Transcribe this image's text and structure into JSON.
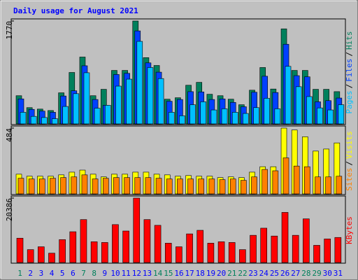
{
  "chart_data": [
    {
      "type": "bar",
      "title": "Daily usage for August 2021",
      "ylim": [
        0,
        1770
      ],
      "yticks": [
        1770
      ],
      "legend_separator": "/",
      "series": [
        {
          "name": "Hits",
          "color": "#00805c",
          "values": [
            485,
            280,
            255,
            230,
            535,
            885,
            1150,
            485,
            595,
            920,
            920,
            1770,
            1140,
            1005,
            425,
            450,
            665,
            715,
            510,
            485,
            425,
            330,
            580,
            970,
            600,
            1635,
            920,
            920,
            595,
            595,
            555
          ]
        },
        {
          "name": "Files",
          "color": "#0040ff",
          "values": [
            430,
            250,
            220,
            200,
            480,
            570,
            1000,
            420,
            320,
            850,
            870,
            1600,
            1050,
            890,
            390,
            420,
            555,
            550,
            420,
            430,
            370,
            295,
            545,
            820,
            540,
            1370,
            830,
            810,
            380,
            400,
            445
          ]
        },
        {
          "name": "Pages",
          "color": "#00c0ff",
          "values": [
            200,
            130,
            110,
            90,
            300,
            520,
            880,
            270,
            320,
            650,
            770,
            1420,
            970,
            780,
            200,
            140,
            330,
            380,
            240,
            260,
            200,
            180,
            280,
            440,
            260,
            990,
            640,
            470,
            275,
            240,
            330
          ]
        }
      ]
    },
    {
      "type": "bar",
      "ylim": [
        0,
        484
      ],
      "yticks": [
        484
      ],
      "legend_separator": "/",
      "series": [
        {
          "name": "Visits",
          "color": "#ffff00",
          "values": [
            145,
            130,
            130,
            130,
            140,
            160,
            175,
            145,
            125,
            145,
            145,
            160,
            160,
            145,
            140,
            130,
            135,
            130,
            130,
            120,
            125,
            120,
            160,
            200,
            200,
            484,
            470,
            420,
            315,
            330,
            375
          ]
        },
        {
          "name": "Sites",
          "color": "#ff8000",
          "values": [
            115,
            110,
            110,
            115,
            120,
            125,
            140,
            110,
            115,
            120,
            120,
            120,
            120,
            115,
            110,
            110,
            110,
            110,
            110,
            105,
            110,
            100,
            125,
            180,
            170,
            265,
            205,
            200,
            125,
            125,
            130
          ]
        }
      ]
    },
    {
      "type": "bar",
      "ylim": [
        0,
        20386
      ],
      "yticks": [
        20386
      ],
      "categories": [
        "1",
        "2",
        "3",
        "4",
        "5",
        "6",
        "7",
        "8",
        "9",
        "10",
        "11",
        "12",
        "13",
        "14",
        "15",
        "16",
        "17",
        "18",
        "19",
        "20",
        "21",
        "22",
        "23",
        "24",
        "25",
        "26",
        "27",
        "28",
        "29",
        "30",
        "31"
      ],
      "category_colors": [
        "#00805c",
        "#0000ff",
        "#0000ff",
        "#0000ff",
        "#0000ff",
        "#0000ff",
        "#00805c",
        "#00805c",
        "#0000ff",
        "#0000ff",
        "#0000ff",
        "#0000ff",
        "#0000ff",
        "#00805c",
        "#00805c",
        "#0000ff",
        "#0000ff",
        "#0000ff",
        "#0000ff",
        "#0000ff",
        "#00805c",
        "#00805c",
        "#0000ff",
        "#0000ff",
        "#0000ff",
        "#0000ff",
        "#0000ff",
        "#00805c",
        "#00805c",
        "#0000ff",
        "#0000ff"
      ],
      "series": [
        {
          "name": "KBytes",
          "color": "#ff0000",
          "values": [
            7700,
            4080,
            4980,
            2950,
            7250,
            9740,
            13590,
            6570,
            6340,
            12000,
            9970,
            20386,
            13590,
            11770,
            6120,
            4980,
            9060,
            10190,
            6120,
            6570,
            6340,
            4080,
            8610,
            10870,
            8380,
            15860,
            8610,
            13820,
            5440,
            7470,
            7930
          ]
        }
      ]
    }
  ]
}
